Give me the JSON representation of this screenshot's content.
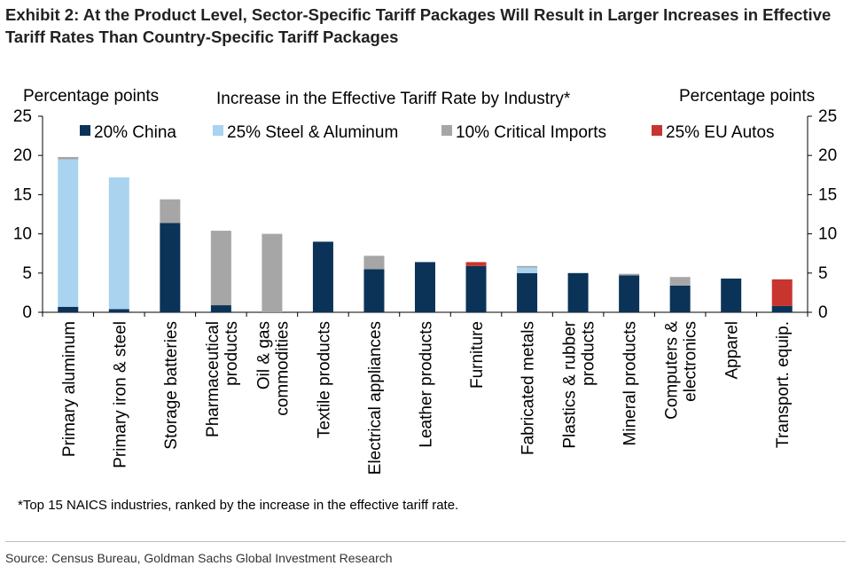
{
  "title_line1": "Exhibit 2: At the Product Level, Sector-Specific Tariff Packages Will Result in Larger Increases in Effective",
  "title_line2": "Tariff Rates Than Country-Specific Tariff Packages",
  "footnote": "*Top 15 NAICS industries, ranked by the increase in the effective tariff rate.",
  "source": "Source: Census Bureau, Goldman Sachs Global Investment Research",
  "colors": {
    "china": "#0b3358",
    "steel": "#a9d3ef",
    "critical": "#a6a6a6",
    "eu": "#c8352f",
    "axis": "#000000"
  },
  "chart_data": {
    "type": "bar",
    "stacked": true,
    "title": "Increase in the Effective Tariff Rate by Industry*",
    "ylabel_left": "Percentage points",
    "ylabel_right": "Percentage points",
    "ylim": [
      0,
      25
    ],
    "yticks": [
      0,
      5,
      10,
      15,
      20,
      25
    ],
    "legend_position": "top",
    "categories": [
      [
        "Primary aluminum"
      ],
      [
        "Primary iron & steel"
      ],
      [
        "Storage batteries"
      ],
      [
        "Pharmaceutical",
        "products"
      ],
      [
        "Oil & gas",
        "commodities"
      ],
      [
        "Textile products"
      ],
      [
        "Electrical appliances"
      ],
      [
        "Leather products"
      ],
      [
        "Furniture"
      ],
      [
        "Fabricated metals"
      ],
      [
        "Plastics & rubber",
        "products"
      ],
      [
        "Mineral products"
      ],
      [
        "Computers &",
        "electronics"
      ],
      [
        "Apparel"
      ],
      [
        "Transport. equip."
      ]
    ],
    "series": [
      {
        "name": "20% China",
        "color_key": "china",
        "values": [
          0.7,
          0.4,
          11.4,
          0.9,
          0.0,
          9.0,
          5.5,
          6.4,
          5.9,
          5.0,
          5.0,
          4.7,
          3.4,
          4.3,
          0.8
        ]
      },
      {
        "name": "25% Steel & Aluminum",
        "color_key": "steel",
        "values": [
          18.8,
          16.8,
          0.0,
          0.0,
          0.0,
          0.0,
          0.0,
          0.0,
          0.0,
          0.7,
          0.0,
          0.0,
          0.0,
          0.0,
          0.0
        ]
      },
      {
        "name": "10% Critical Imports",
        "color_key": "critical",
        "values": [
          0.3,
          0.0,
          3.0,
          9.5,
          10.0,
          0.0,
          1.7,
          0.0,
          0.0,
          0.2,
          0.0,
          0.2,
          1.1,
          0.0,
          0.0
        ]
      },
      {
        "name": "25% EU Autos",
        "color_key": "eu",
        "values": [
          0.0,
          0.0,
          0.0,
          0.0,
          0.0,
          0.0,
          0.0,
          0.0,
          0.5,
          0.0,
          0.0,
          0.0,
          0.0,
          0.0,
          3.4
        ]
      }
    ]
  }
}
